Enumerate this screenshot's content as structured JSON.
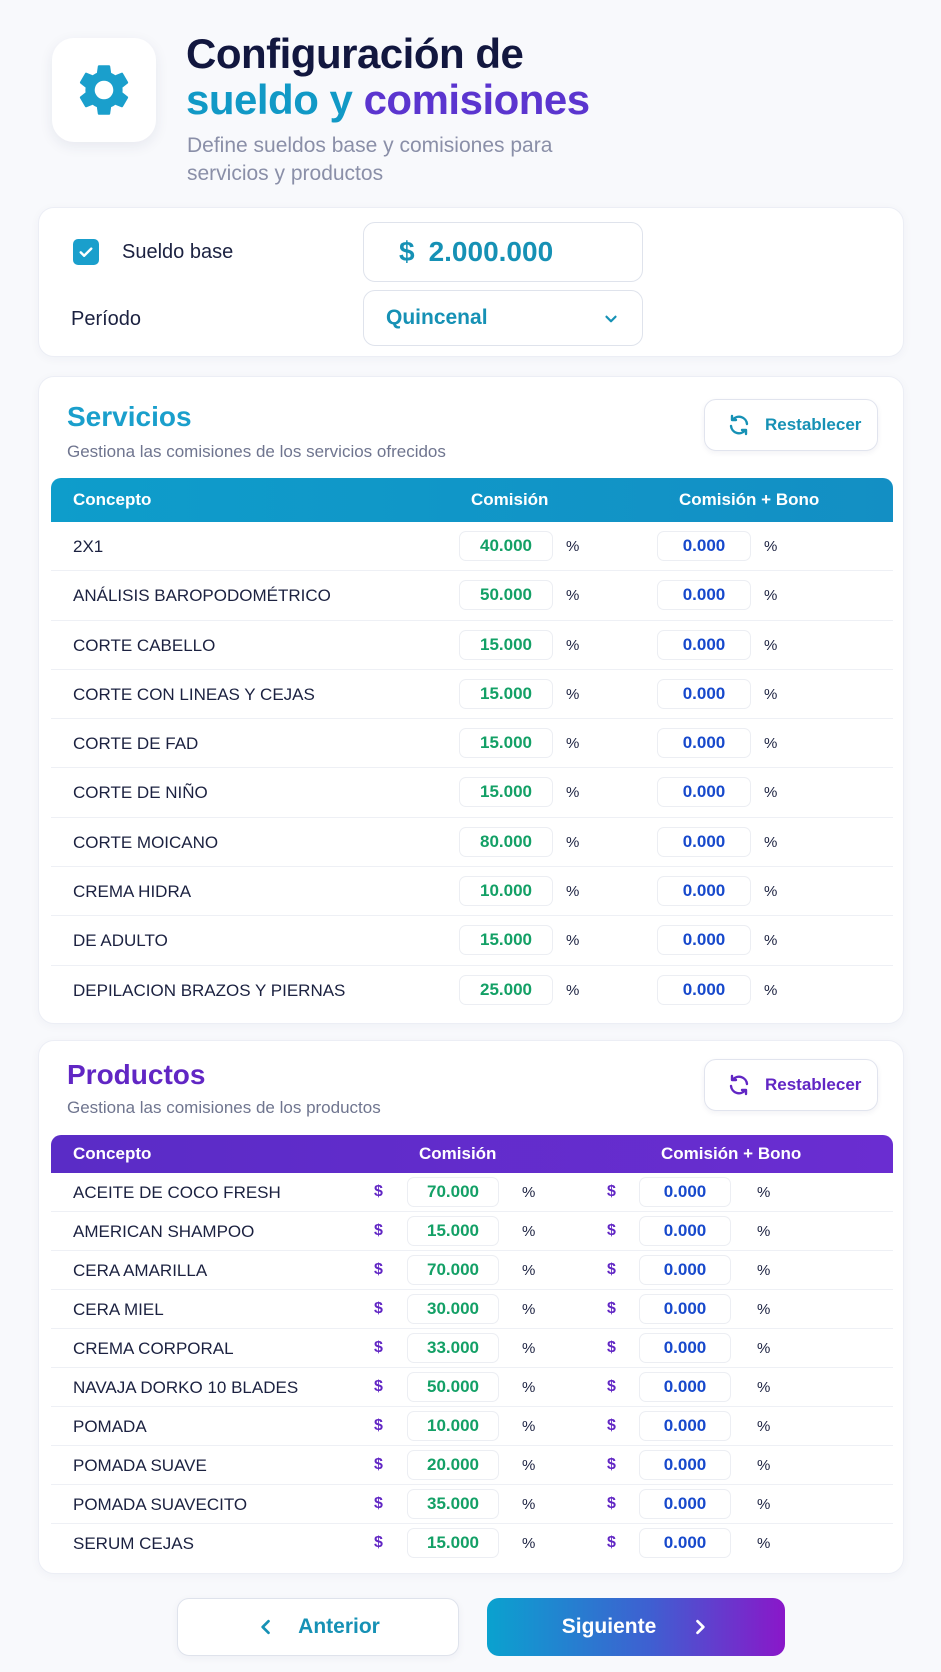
{
  "header": {
    "title_line1": "Configuración de",
    "title_line2_a": "sueldo y",
    "title_line2_b": "comisiones",
    "subtitle": "Define sueldos base y comisiones para servicios y productos",
    "icon": "gear-icon"
  },
  "salary": {
    "checkbox_checked": true,
    "label": "Sueldo base",
    "currency": "$",
    "value": "2.000.000",
    "period_label": "Período",
    "period_value": "Quincenal"
  },
  "servicios": {
    "title": "Servicios",
    "subtitle": "Gestiona las comisiones de los servicios ofrecidos",
    "reset_label": "Restablecer",
    "columns": [
      "Concepto",
      "Comisión",
      "Comisión + Bono"
    ],
    "rows": [
      {
        "name": "2X1",
        "comision": "40.000",
        "bono": "0.000"
      },
      {
        "name": "ANÁLISIS BAROPODOMÉTRICO",
        "comision": "50.000",
        "bono": "0.000"
      },
      {
        "name": "CORTE CABELLO",
        "comision": "15.000",
        "bono": "0.000"
      },
      {
        "name": "CORTE CON LINEAS Y CEJAS",
        "comision": "15.000",
        "bono": "0.000"
      },
      {
        "name": "CORTE DE FAD",
        "comision": "15.000",
        "bono": "0.000"
      },
      {
        "name": "CORTE DE NIÑO",
        "comision": "15.000",
        "bono": "0.000"
      },
      {
        "name": "CORTE MOICANO",
        "comision": "80.000",
        "bono": "0.000"
      },
      {
        "name": "CREMA HIDRA",
        "comision": "10.000",
        "bono": "0.000"
      },
      {
        "name": "DE ADULTO",
        "comision": "15.000",
        "bono": "0.000"
      },
      {
        "name": "DEPILACION BRAZOS Y PIERNAS",
        "comision": "25.000",
        "bono": "0.000"
      }
    ]
  },
  "productos": {
    "title": "Productos",
    "subtitle": "Gestiona las comisiones de los productos",
    "reset_label": "Restablecer",
    "columns": [
      "Concepto",
      "Comisión",
      "Comisión + Bono"
    ],
    "rows": [
      {
        "name": "ACEITE DE COCO FRESH",
        "comision": "70.000",
        "bono": "0.000"
      },
      {
        "name": "AMERICAN SHAMPOO",
        "comision": "15.000",
        "bono": "0.000"
      },
      {
        "name": "CERA AMARILLA",
        "comision": "70.000",
        "bono": "0.000"
      },
      {
        "name": "CERA MIEL",
        "comision": "30.000",
        "bono": "0.000"
      },
      {
        "name": "CREMA CORPORAL",
        "comision": "33.000",
        "bono": "0.000"
      },
      {
        "name": "NAVAJA DORKO 10 BLADES",
        "comision": "50.000",
        "bono": "0.000"
      },
      {
        "name": "POMADA",
        "comision": "10.000",
        "bono": "0.000"
      },
      {
        "name": "POMADA SUAVE",
        "comision": "20.000",
        "bono": "0.000"
      },
      {
        "name": "POMADA SUAVECITO",
        "comision": "35.000",
        "bono": "0.000"
      },
      {
        "name": "SERUM CEJAS",
        "comision": "15.000",
        "bono": "0.000"
      }
    ]
  },
  "symbols": {
    "currency": "$",
    "percent": "%"
  },
  "footer": {
    "prev_label": "Anterior",
    "next_label": "Siguiente"
  },
  "colors": {
    "accent_blue": "#1a9fcc",
    "accent_purple": "#6126c4",
    "commission_green": "#13a066",
    "bonus_blue": "#1749cc"
  }
}
